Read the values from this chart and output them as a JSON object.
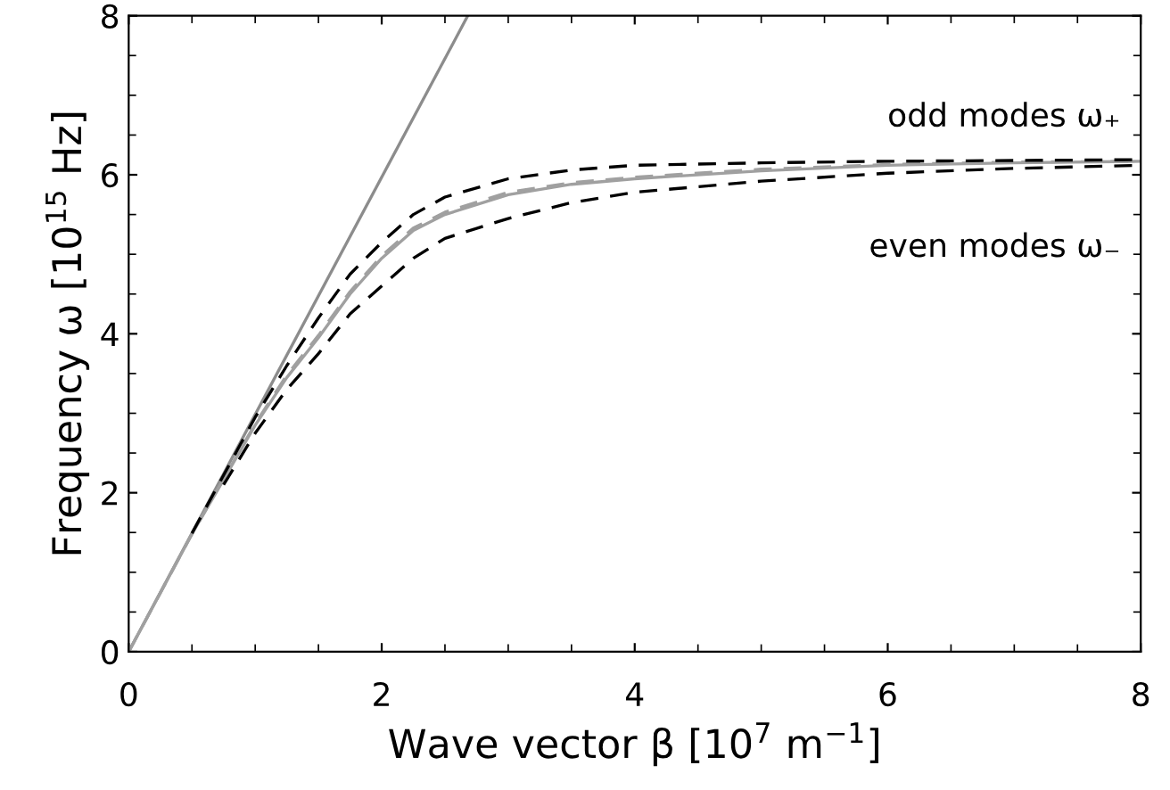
{
  "chart_data": {
    "type": "line",
    "xlabel": "Wave vector β [10$^{7}$ m$^{−1}$]",
    "ylabel": "Frequency ω [10$^{15}$ Hz]",
    "xlim": [
      0,
      8
    ],
    "ylim": [
      0,
      8
    ],
    "xticks": [
      0,
      2,
      4,
      6,
      8
    ],
    "yticks": [
      0,
      2,
      4,
      6,
      8
    ],
    "grid": false,
    "legend": false,
    "marker": "none",
    "annotations": [
      "odd modes ω₊",
      "even modes ω₋"
    ],
    "series": [
      {
        "color": "#8c8c8c",
        "line_style": "solid",
        "x": [
          0,
          2.68
        ],
        "values": [
          0,
          8
        ]
      },
      {
        "color": "#a0a0a0",
        "line_style": "solid",
        "x": [
          0,
          0.5,
          1,
          1.25,
          1.5,
          1.75,
          2,
          2.25,
          2.5,
          3,
          3.5,
          4,
          5,
          6,
          7,
          8
        ],
        "values": [
          0,
          1.48,
          2.85,
          3.45,
          3.95,
          4.5,
          4.95,
          5.3,
          5.5,
          5.75,
          5.88,
          5.95,
          6.05,
          6.12,
          6.15,
          6.17
        ]
      },
      {
        "color": "#a0a0a0",
        "line_style": "dashed",
        "x": [
          0,
          0.5,
          1,
          1.25,
          1.5,
          1.75,
          2,
          2.25,
          2.5,
          3,
          3.5,
          4,
          5,
          6,
          7,
          8
        ],
        "values": [
          0,
          1.48,
          2.87,
          3.48,
          3.98,
          4.53,
          4.98,
          5.33,
          5.53,
          5.78,
          5.9,
          5.97,
          6.07,
          6.13,
          6.16,
          6.17
        ]
      },
      {
        "color": "#000000",
        "line_style": "dashed",
        "x": [
          0.5,
          1,
          1.25,
          1.5,
          1.75,
          2,
          2.25,
          2.5,
          3,
          3.5,
          4,
          5,
          6,
          8
        ],
        "values": [
          1.49,
          2.95,
          3.6,
          4.2,
          4.75,
          5.15,
          5.5,
          5.72,
          5.95,
          6.06,
          6.12,
          6.15,
          6.17,
          6.19
        ]
      },
      {
        "color": "#000000",
        "line_style": "dashed",
        "x": [
          0.75,
          1,
          1.25,
          1.5,
          1.75,
          2,
          2.25,
          2.5,
          3,
          3.5,
          4,
          5,
          6,
          7,
          8
        ],
        "values": [
          2.1,
          2.75,
          3.3,
          3.75,
          4.25,
          4.6,
          4.95,
          5.2,
          5.45,
          5.65,
          5.78,
          5.92,
          6.02,
          6.08,
          6.12
        ]
      }
    ]
  }
}
